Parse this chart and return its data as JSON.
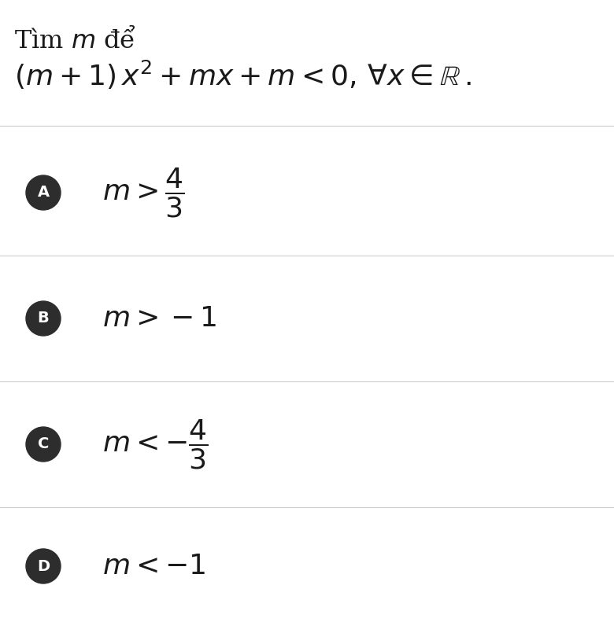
{
  "background_color": "#ffffff",
  "title_line1_plain": "Tìm ",
  "title_line1_italic": "m",
  "title_line1_end": " để",
  "title_line2": "$(m+1)\\,x^2 + mx + m < 0,\\,\\forall x \\in \\mathbb{R}\\,.$",
  "options": [
    {
      "label": "A",
      "text": "$m > \\dfrac{4}{3}$"
    },
    {
      "label": "B",
      "text": "$m > -1$"
    },
    {
      "label": "C",
      "text": "$m < -\\dfrac{4}{3}$"
    },
    {
      "label": "D",
      "text": "$m < -1$"
    }
  ],
  "circle_color": "#2d2d2d",
  "circle_text_color": "#ffffff",
  "divider_color": "#d0d0d0",
  "title_fontsize": 23,
  "formula_fontsize": 26,
  "option_fontsize": 26,
  "label_fontsize": 14
}
